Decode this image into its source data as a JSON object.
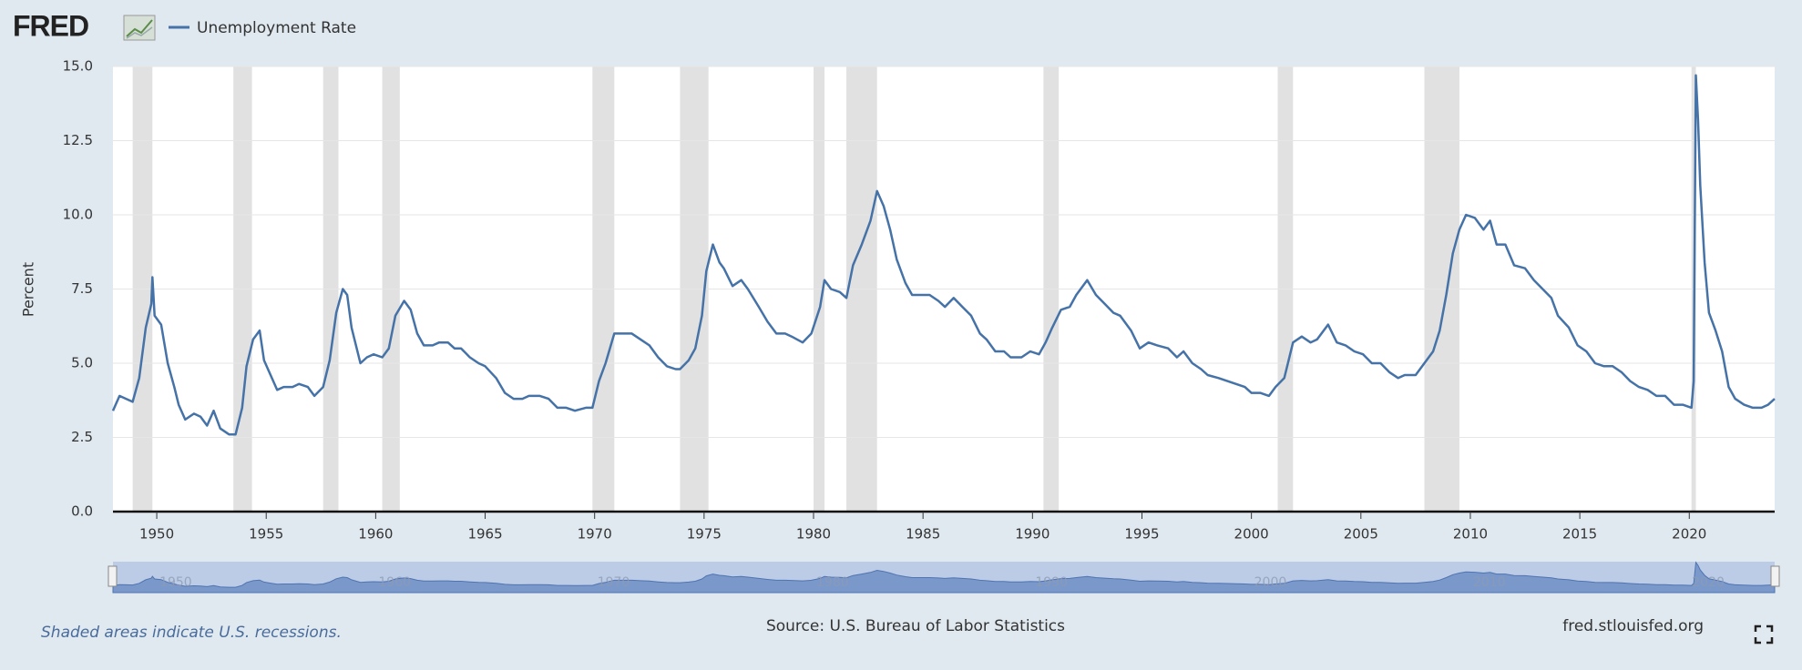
{
  "brand": "FRED",
  "chart_data": {
    "type": "line",
    "y_label": "Percent",
    "x": [
      1948.0,
      1948.3,
      1948.6,
      1948.9,
      1949.2,
      1949.5,
      1949.75,
      1949.8,
      1949.9,
      1950.2,
      1950.5,
      1950.8,
      1951.0,
      1951.3,
      1951.7,
      1952.0,
      1952.3,
      1952.6,
      1952.9,
      1953.3,
      1953.6,
      1953.9,
      1954.1,
      1954.4,
      1954.7,
      1954.9,
      1955.2,
      1955.5,
      1955.8,
      1956.2,
      1956.5,
      1956.9,
      1957.2,
      1957.6,
      1957.9,
      1958.2,
      1958.5,
      1958.7,
      1958.9,
      1959.3,
      1959.6,
      1959.9,
      1960.3,
      1960.6,
      1960.9,
      1961.3,
      1961.6,
      1961.9,
      1962.2,
      1962.6,
      1962.9,
      1963.3,
      1963.6,
      1963.9,
      1964.3,
      1964.7,
      1965.0,
      1965.5,
      1965.9,
      1966.3,
      1966.7,
      1967.0,
      1967.5,
      1967.9,
      1968.3,
      1968.7,
      1969.1,
      1969.6,
      1969.9,
      1970.2,
      1970.5,
      1970.9,
      1971.3,
      1971.7,
      1972.1,
      1972.5,
      1972.9,
      1973.3,
      1973.7,
      1973.9,
      1974.3,
      1974.6,
      1974.9,
      1975.1,
      1975.4,
      1975.7,
      1975.9,
      1976.3,
      1976.7,
      1977.0,
      1977.5,
      1977.9,
      1978.3,
      1978.7,
      1979.0,
      1979.5,
      1979.9,
      1980.3,
      1980.5,
      1980.8,
      1981.2,
      1981.5,
      1981.8,
      1982.2,
      1982.6,
      1982.9,
      1983.2,
      1983.5,
      1983.8,
      1984.2,
      1984.5,
      1984.9,
      1985.3,
      1985.7,
      1986.0,
      1986.4,
      1986.8,
      1987.2,
      1987.6,
      1987.9,
      1988.3,
      1988.7,
      1989.0,
      1989.5,
      1989.9,
      1990.3,
      1990.6,
      1990.9,
      1991.3,
      1991.7,
      1992.0,
      1992.5,
      1992.9,
      1993.3,
      1993.7,
      1994.0,
      1994.5,
      1994.9,
      1995.3,
      1995.7,
      1996.2,
      1996.6,
      1996.9,
      1997.3,
      1997.7,
      1998.0,
      1998.5,
      1998.9,
      1999.3,
      1999.7,
      2000.0,
      2000.4,
      2000.8,
      2001.1,
      2001.5,
      2001.9,
      2002.3,
      2002.7,
      2003.0,
      2003.5,
      2003.9,
      2004.3,
      2004.7,
      2005.1,
      2005.5,
      2005.9,
      2006.3,
      2006.7,
      2007.0,
      2007.5,
      2007.9,
      2008.3,
      2008.6,
      2008.9,
      2009.2,
      2009.5,
      2009.8,
      2010.2,
      2010.6,
      2010.9,
      2011.2,
      2011.6,
      2012.0,
      2012.5,
      2012.9,
      2013.3,
      2013.7,
      2014.0,
      2014.5,
      2014.9,
      2015.3,
      2015.7,
      2016.1,
      2016.5,
      2016.9,
      2017.3,
      2017.7,
      2018.1,
      2018.5,
      2018.9,
      2019.3,
      2019.7,
      2020.1,
      2020.2,
      2020.3,
      2020.4,
      2020.5,
      2020.7,
      2020.9,
      2021.2,
      2021.5,
      2021.8,
      2022.1,
      2022.5,
      2022.9,
      2023.3,
      2023.6,
      2023.9
    ],
    "series": [
      {
        "name": "Unemployment Rate",
        "color": "#4572a7",
        "values": [
          3.4,
          3.9,
          3.8,
          3.7,
          4.5,
          6.2,
          7.0,
          7.9,
          6.6,
          6.3,
          5.0,
          4.2,
          3.6,
          3.1,
          3.3,
          3.2,
          2.9,
          3.4,
          2.8,
          2.6,
          2.6,
          3.5,
          4.9,
          5.8,
          6.1,
          5.1,
          4.6,
          4.1,
          4.2,
          4.2,
          4.3,
          4.2,
          3.9,
          4.2,
          5.1,
          6.7,
          7.5,
          7.3,
          6.2,
          5.0,
          5.2,
          5.3,
          5.2,
          5.5,
          6.6,
          7.1,
          6.8,
          6.0,
          5.6,
          5.6,
          5.7,
          5.7,
          5.5,
          5.5,
          5.2,
          5.0,
          4.9,
          4.5,
          4.0,
          3.8,
          3.8,
          3.9,
          3.9,
          3.8,
          3.5,
          3.5,
          3.4,
          3.5,
          3.5,
          4.4,
          5.0,
          6.0,
          6.0,
          6.0,
          5.8,
          5.6,
          5.2,
          4.9,
          4.8,
          4.8,
          5.1,
          5.5,
          6.6,
          8.1,
          9.0,
          8.4,
          8.2,
          7.6,
          7.8,
          7.5,
          6.9,
          6.4,
          6.0,
          6.0,
          5.9,
          5.7,
          6.0,
          6.9,
          7.8,
          7.5,
          7.4,
          7.2,
          8.3,
          9.0,
          9.8,
          10.8,
          10.3,
          9.5,
          8.5,
          7.7,
          7.3,
          7.3,
          7.3,
          7.1,
          6.9,
          7.2,
          6.9,
          6.6,
          6.0,
          5.8,
          5.4,
          5.4,
          5.2,
          5.2,
          5.4,
          5.3,
          5.7,
          6.2,
          6.8,
          6.9,
          7.3,
          7.8,
          7.3,
          7.0,
          6.7,
          6.6,
          6.1,
          5.5,
          5.7,
          5.6,
          5.5,
          5.2,
          5.4,
          5.0,
          4.8,
          4.6,
          4.5,
          4.4,
          4.3,
          4.2,
          4.0,
          4.0,
          3.9,
          4.2,
          4.5,
          5.7,
          5.9,
          5.7,
          5.8,
          6.3,
          5.7,
          5.6,
          5.4,
          5.3,
          5.0,
          5.0,
          4.7,
          4.5,
          4.6,
          4.6,
          5.0,
          5.4,
          6.1,
          7.3,
          8.7,
          9.5,
          10.0,
          9.9,
          9.5,
          9.8,
          9.0,
          9.0,
          8.3,
          8.2,
          7.8,
          7.5,
          7.2,
          6.6,
          6.2,
          5.6,
          5.4,
          5.0,
          4.9,
          4.9,
          4.7,
          4.4,
          4.2,
          4.1,
          3.9,
          3.9,
          3.6,
          3.6,
          3.5,
          4.4,
          14.7,
          13.2,
          11.0,
          8.4,
          6.7,
          6.1,
          5.4,
          4.2,
          3.8,
          3.6,
          3.5,
          3.5,
          3.6,
          3.8
        ]
      }
    ],
    "recessions": [
      [
        1948.9,
        1949.8
      ],
      [
        1953.5,
        1954.35
      ],
      [
        1957.6,
        1958.3
      ],
      [
        1960.3,
        1961.1
      ],
      [
        1969.9,
        1970.9
      ],
      [
        1973.9,
        1975.2
      ],
      [
        1980.0,
        1980.5
      ],
      [
        1981.5,
        1982.9
      ],
      [
        1990.5,
        1991.2
      ],
      [
        2001.2,
        2001.9
      ],
      [
        2007.9,
        2009.5
      ],
      [
        2020.1,
        2020.3
      ]
    ],
    "recession_color": "#e1e1e1",
    "xlim": [
      1948.0,
      2023.9
    ],
    "xticks": [
      1950,
      1955,
      1960,
      1965,
      1970,
      1975,
      1980,
      1985,
      1990,
      1995,
      2000,
      2005,
      2010,
      2015,
      2020
    ],
    "ylim": [
      0,
      15
    ],
    "yticks": [
      {
        "value": 0,
        "label": "0.0"
      },
      2.5,
      {
        "value": 5,
        "label": "5.0"
      },
      7.5,
      {
        "value": 10,
        "label": "10.0"
      },
      12.5,
      {
        "value": 15,
        "label": "15.0"
      }
    ],
    "grid": true,
    "navigator_xticks": [
      1950,
      1960,
      1970,
      1980,
      1990,
      2000,
      2010,
      2020
    ],
    "note": "Shaded areas indicate U.S. recessions.",
    "source": "Source: U.S. Bureau of Labor Statistics",
    "site": "fred.stlouisfed.org"
  }
}
